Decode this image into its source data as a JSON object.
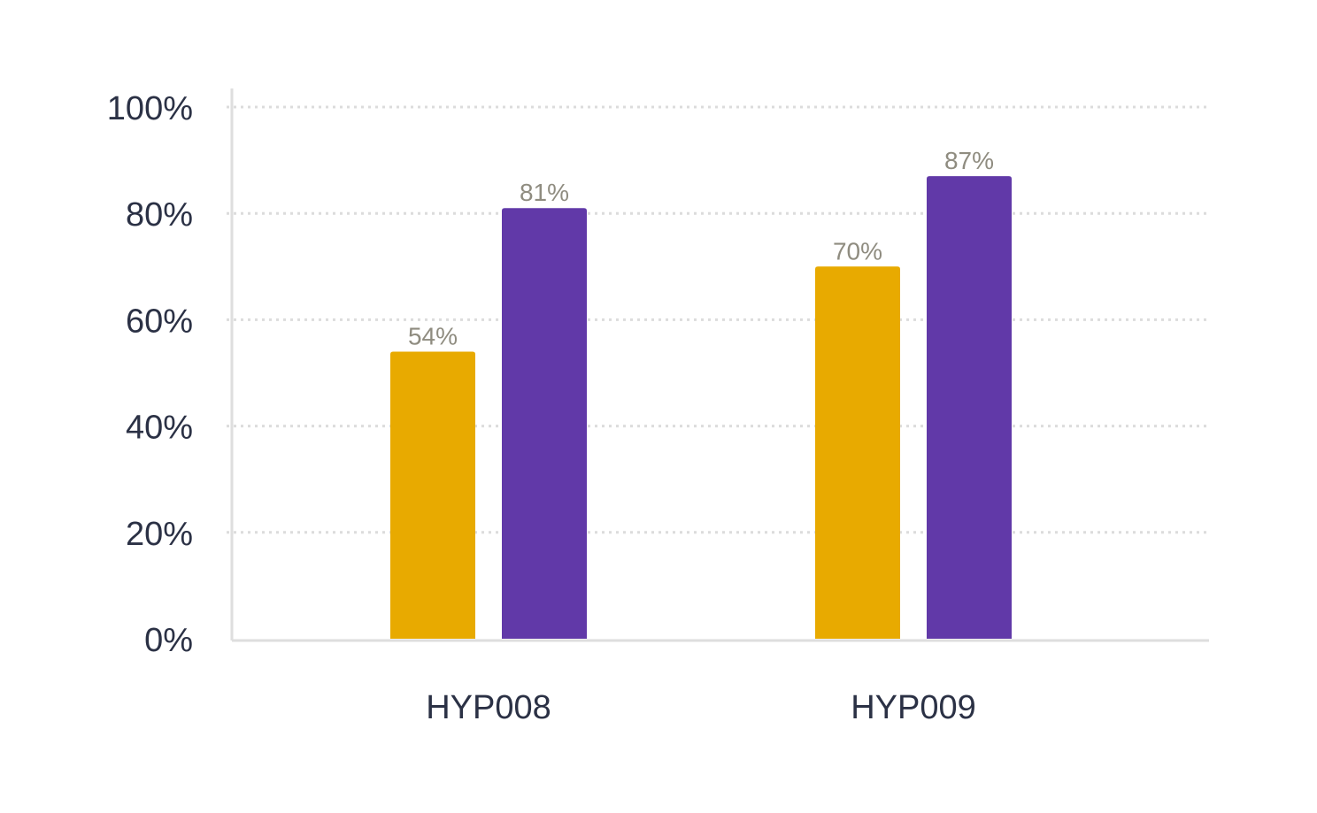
{
  "chart_data": {
    "type": "bar",
    "categories": [
      "HYP008",
      "HYP009"
    ],
    "series": [
      {
        "values": [
          54,
          70
        ],
        "labels": [
          "54%",
          "70%"
        ],
        "color": "#e8aa00"
      },
      {
        "values": [
          81,
          87
        ],
        "labels": [
          "81%",
          "87%"
        ],
        "color": "#6139a8"
      }
    ],
    "ylim": [
      0,
      100
    ],
    "yticks": [
      0,
      20,
      40,
      60,
      80,
      100
    ],
    "ytick_labels": [
      "0%",
      "20%",
      "40%",
      "60%",
      "80%",
      "100%"
    ],
    "grid": true,
    "legend": "none"
  }
}
